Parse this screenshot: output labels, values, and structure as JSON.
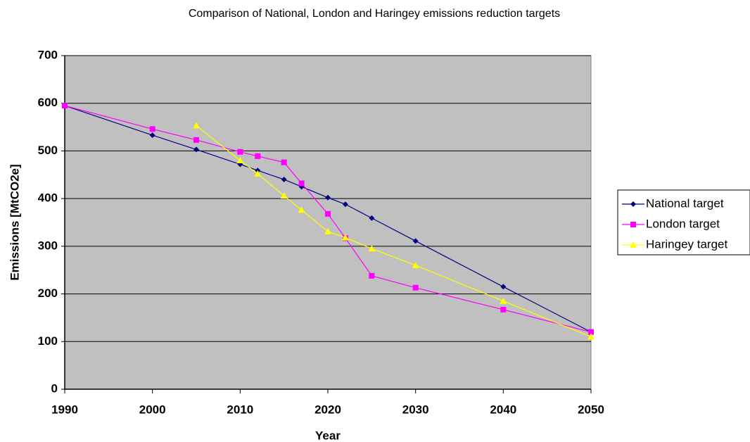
{
  "chart_data": {
    "type": "line",
    "title": "Comparison of National, London and Haringey emissions reduction targets",
    "x_label": "Year",
    "y_label": "Emissions [MtCO2e]",
    "x": [
      1990,
      2000,
      2005,
      2010,
      2012,
      2015,
      2017,
      2020,
      2022,
      2025,
      2030,
      2040,
      2050
    ],
    "series": [
      {
        "name": "National target",
        "color": "#000080",
        "marker": "diamond",
        "values": [
          595,
          533,
          503,
          472,
          459,
          440,
          425,
          402,
          388,
          359,
          311,
          215,
          120
        ]
      },
      {
        "name": "London target",
        "color": "#ff00ff",
        "marker": "square",
        "values": [
          595,
          546,
          523,
          498,
          489,
          476,
          432,
          368,
          317,
          238,
          213,
          167,
          120
        ]
      },
      {
        "name": "Haringey target",
        "color": "#ffff00",
        "marker": "triangle",
        "values": [
          null,
          null,
          553,
          480,
          452,
          406,
          376,
          331,
          318,
          295,
          260,
          185,
          110
        ]
      }
    ],
    "xlim": [
      1990,
      2050
    ],
    "xticks": [
      1990,
      2000,
      2010,
      2020,
      2030,
      2040,
      2050
    ],
    "ylim": [
      0,
      700
    ],
    "yticks": [
      0,
      100,
      200,
      300,
      400,
      500,
      600,
      700
    ],
    "grid": true,
    "legend": "right"
  }
}
